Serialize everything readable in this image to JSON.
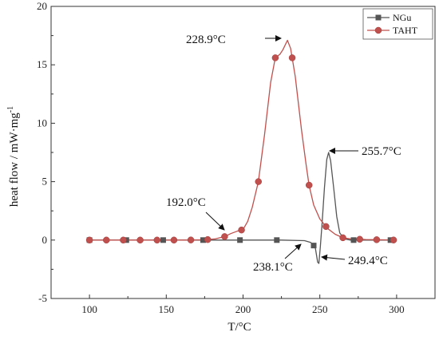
{
  "chart_data": {
    "type": "line",
    "xlabel": "T/°C",
    "ylabel": "heat flow / mW·mg",
    "ylabel_superscript": "-1",
    "xlim": [
      75,
      325
    ],
    "ylim": [
      -5,
      20
    ],
    "x_ticks": [
      100,
      150,
      200,
      250,
      300
    ],
    "y_ticks": [
      -5,
      0,
      5,
      10,
      15,
      20
    ],
    "grid": false,
    "legend_position": "top-right",
    "series": [
      {
        "name": "NGu",
        "color": "#555555",
        "marker": "square",
        "line": [
          [
            100,
            0
          ],
          [
            150,
            0
          ],
          [
            200,
            0
          ],
          [
            225,
            0
          ],
          [
            240,
            -0.05
          ],
          [
            244,
            -0.2
          ],
          [
            247,
            -0.6
          ],
          [
            248.6,
            -1.9
          ],
          [
            249.4,
            -2.0
          ],
          [
            250.3,
            -0.6
          ],
          [
            251.5,
            1.5
          ],
          [
            253,
            4.5
          ],
          [
            254.5,
            6.9
          ],
          [
            255.7,
            7.5
          ],
          [
            257,
            6.8
          ],
          [
            259,
            4.5
          ],
          [
            261,
            2.0
          ],
          [
            263,
            0.6
          ],
          [
            266,
            0.1
          ],
          [
            270,
            0
          ],
          [
            300,
            0
          ]
        ],
        "markers_x": [
          100,
          124,
          148,
          174,
          198,
          222,
          246,
          272,
          296
        ]
      },
      {
        "name": "TAHT",
        "color": "#c0504d",
        "marker": "circle",
        "line": [
          [
            100,
            0
          ],
          [
            160,
            0
          ],
          [
            175,
            0.02
          ],
          [
            182,
            0.1
          ],
          [
            188,
            0.3
          ],
          [
            192,
            0.55
          ],
          [
            196,
            0.75
          ],
          [
            200,
            0.9
          ],
          [
            203,
            1.6
          ],
          [
            206,
            2.8
          ],
          [
            210,
            5.0
          ],
          [
            214,
            9.0
          ],
          [
            218,
            13.5
          ],
          [
            221,
            15.6
          ],
          [
            224,
            15.9
          ],
          [
            226,
            16.3
          ],
          [
            228.9,
            17.1
          ],
          [
            231,
            16.4
          ],
          [
            234,
            14.0
          ],
          [
            238,
            9.5
          ],
          [
            241,
            6.5
          ],
          [
            243,
            4.7
          ],
          [
            246,
            3.0
          ],
          [
            250,
            1.8
          ],
          [
            255,
            1.0
          ],
          [
            260,
            0.5
          ],
          [
            265,
            0.2
          ],
          [
            270,
            0.1
          ],
          [
            280,
            0.05
          ],
          [
            300,
            0
          ]
        ],
        "markers_x": [
          100,
          111,
          122,
          133,
          144,
          155,
          166,
          177,
          188,
          199,
          210,
          221,
          232,
          243,
          254,
          265,
          276,
          287,
          298
        ]
      }
    ],
    "annotations": [
      {
        "text": "228.9°C",
        "x": 228.9,
        "y": 17.1
      },
      {
        "text": "255.7°C",
        "x": 255.7,
        "y": 7.5
      },
      {
        "text": "192.0°C",
        "x": 192.0,
        "y": 0.55
      },
      {
        "text": "238.1°C",
        "x": 238.1,
        "y": 0
      },
      {
        "text": "249.4°C",
        "x": 249.4,
        "y": -2.0
      }
    ]
  }
}
